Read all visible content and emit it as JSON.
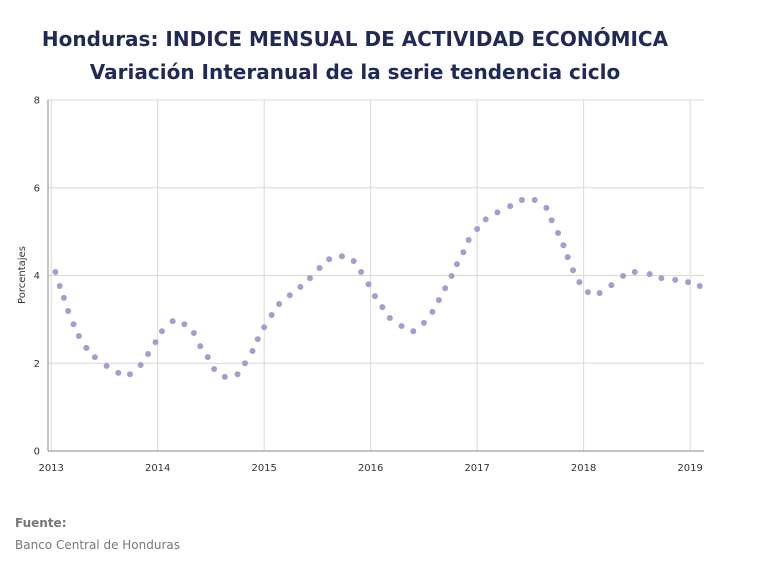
{
  "chart_data": {
    "type": "scatter",
    "title": "Honduras: INDICE MENSUAL DE ACTIVIDAD ECONÓMICA",
    "subtitle": "Variación Interanual de la serie tendencia ciclo",
    "y_label": "Porcentajes",
    "source_label": "Fuente:",
    "source": "Banco Central de Honduras",
    "color": "#a99bcf",
    "grid": true,
    "xlim": [
      2012.97,
      2019.13
    ],
    "xticks": [
      2013,
      2014,
      2015,
      2016,
      2017,
      2018,
      2019
    ],
    "ylim": [
      0,
      8
    ],
    "yticks": [
      0,
      2,
      4,
      6,
      8
    ],
    "x": [
      2013.04,
      2013.08,
      2013.12,
      2013.16,
      2013.21,
      2013.26,
      2013.33,
      2013.41,
      2013.52,
      2013.63,
      2013.74,
      2013.84,
      2013.91,
      2013.98,
      2014.04,
      2014.14,
      2014.25,
      2014.34,
      2014.4,
      2014.47,
      2014.53,
      2014.63,
      2014.75,
      2014.82,
      2014.89,
      2014.94,
      2015.0,
      2015.07,
      2015.14,
      2015.24,
      2015.34,
      2015.43,
      2015.52,
      2015.61,
      2015.73,
      2015.84,
      2015.91,
      2015.98,
      2016.04,
      2016.11,
      2016.18,
      2016.29,
      2016.4,
      2016.5,
      2016.58,
      2016.64,
      2016.7,
      2016.76,
      2016.81,
      2016.87,
      2016.92,
      2017.0,
      2017.08,
      2017.19,
      2017.31,
      2017.42,
      2017.54,
      2017.65,
      2017.7,
      2017.76,
      2017.81,
      2017.85,
      2017.9,
      2017.96,
      2018.04,
      2018.15,
      2018.26,
      2018.37,
      2018.48,
      2018.62,
      2018.73,
      2018.86,
      2018.98,
      2019.09
    ],
    "values": [
      4.08,
      3.76,
      3.49,
      3.19,
      2.89,
      2.62,
      2.35,
      2.14,
      1.94,
      1.78,
      1.75,
      1.96,
      2.21,
      2.48,
      2.73,
      2.96,
      2.89,
      2.69,
      2.39,
      2.14,
      1.87,
      1.69,
      1.75,
      2.0,
      2.28,
      2.55,
      2.82,
      3.1,
      3.35,
      3.55,
      3.74,
      3.94,
      4.17,
      4.37,
      4.44,
      4.33,
      4.08,
      3.8,
      3.53,
      3.28,
      3.03,
      2.85,
      2.73,
      2.92,
      3.17,
      3.44,
      3.71,
      3.99,
      4.26,
      4.53,
      4.81,
      5.06,
      5.28,
      5.44,
      5.58,
      5.72,
      5.72,
      5.54,
      5.26,
      4.97,
      4.69,
      4.42,
      4.12,
      3.85,
      3.62,
      3.6,
      3.78,
      3.99,
      4.08,
      4.03,
      3.94,
      3.9,
      3.85,
      3.76
    ]
  }
}
